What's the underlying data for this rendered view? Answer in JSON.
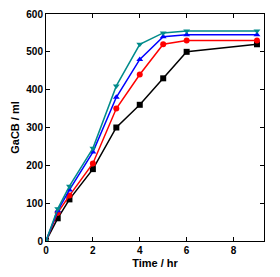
{
  "chart_data": {
    "type": "line",
    "x_label": "Time / hr",
    "y_label": "GaCB / ml",
    "x": [
      0,
      0.5,
      1,
      2,
      3,
      4,
      5,
      6,
      9
    ],
    "series": [
      {
        "color": "#000000",
        "marker": "square",
        "values": [
          0,
          60,
          110,
          190,
          300,
          360,
          430,
          500,
          520
        ]
      },
      {
        "color": "#ff0000",
        "marker": "circle",
        "values": [
          0,
          75,
          120,
          205,
          350,
          440,
          520,
          530,
          530
        ]
      },
      {
        "color": "#0000ff",
        "marker": "triangle-up",
        "values": [
          0,
          80,
          135,
          235,
          380,
          480,
          540,
          545,
          545
        ]
      },
      {
        "color": "#008b8b",
        "marker": "triangle-down",
        "values": [
          0,
          85,
          145,
          245,
          410,
          520,
          550,
          555,
          555
        ]
      }
    ],
    "xlim": [
      0,
      9.3
    ],
    "xticks": [
      0,
      2,
      4,
      6,
      8
    ],
    "ylim": [
      0,
      600
    ],
    "yticks": [
      0,
      100,
      200,
      300,
      400,
      500,
      600
    ],
    "grid": false
  }
}
